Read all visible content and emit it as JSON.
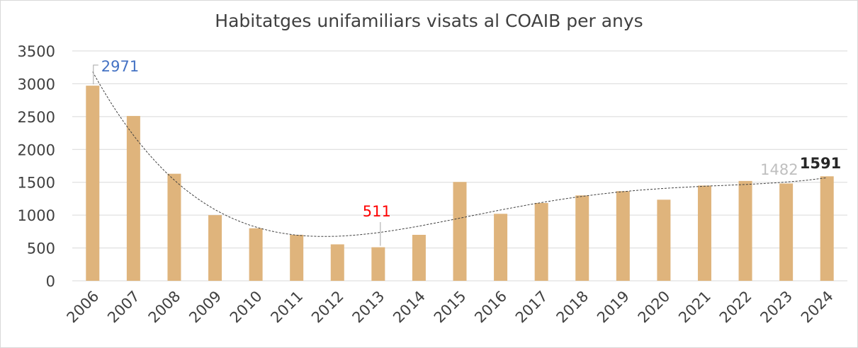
{
  "chart_data": {
    "type": "bar",
    "title": "Habitatges unifamiliars visats al COAIB per anys",
    "categories": [
      "2006",
      "2007",
      "2008",
      "2009",
      "2010",
      "2011",
      "2012",
      "2013",
      "2014",
      "2015",
      "2016",
      "2017",
      "2018",
      "2019",
      "2020",
      "2021",
      "2022",
      "2023",
      "2024"
    ],
    "values": [
      2971,
      2510,
      1630,
      1000,
      800,
      700,
      555,
      511,
      700,
      1505,
      1020,
      1185,
      1300,
      1365,
      1235,
      1450,
      1520,
      1482,
      1591
    ],
    "ylim": [
      0,
      3500
    ],
    "yticks": [
      "0",
      "500",
      "1000",
      "1500",
      "2000",
      "2500",
      "3000",
      "3500"
    ],
    "grid": true,
    "trendline": "polynomial",
    "colors": {
      "bar": "#dfb47c",
      "grid": "#d9d9d9",
      "trend": "#404040"
    },
    "annotations": [
      {
        "category": "2006",
        "label": "2971",
        "color": "#4472c4"
      },
      {
        "category": "2013",
        "label": "511",
        "color": "#ff0000"
      },
      {
        "category": "2023",
        "label": "1482",
        "color": "#bfbfbf"
      },
      {
        "category": "2024",
        "label": "1591",
        "color": "#262626",
        "bold": true
      }
    ]
  }
}
